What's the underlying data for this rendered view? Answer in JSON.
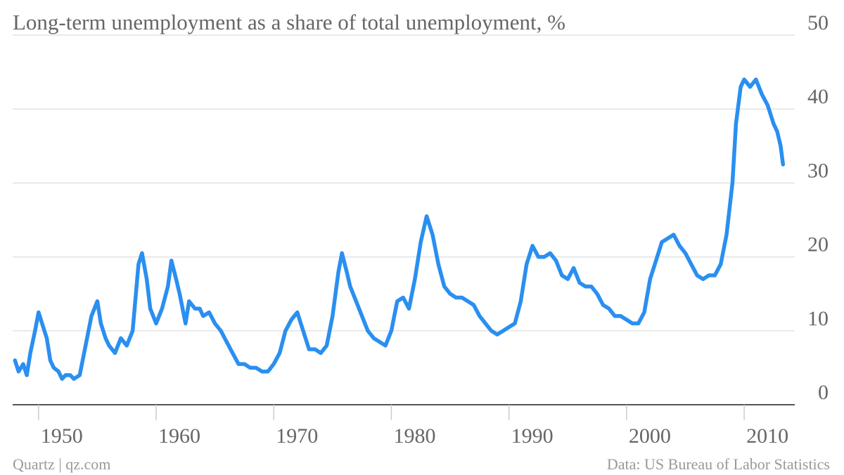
{
  "chart_data": {
    "type": "line",
    "title": "Long-term unemployment as a share of total unemployment, %",
    "source": "Data: US Bureau of Labor Statistics",
    "credit": "Quartz | qz.com",
    "x": [
      1948.0,
      1948.3,
      1948.7,
      1949.0,
      1949.3,
      1949.7,
      1950.0,
      1950.3,
      1950.7,
      1951.0,
      1951.3,
      1951.7,
      1952.0,
      1952.3,
      1952.7,
      1953.0,
      1953.5,
      1954.0,
      1954.5,
      1955.0,
      1955.3,
      1955.7,
      1956.0,
      1956.5,
      1957.0,
      1957.5,
      1958.0,
      1958.5,
      1958.8,
      1959.2,
      1959.5,
      1960.0,
      1960.5,
      1961.0,
      1961.3,
      1961.7,
      1962.0,
      1962.5,
      1962.8,
      1963.3,
      1963.7,
      1964.0,
      1964.5,
      1965.0,
      1965.5,
      1966.0,
      1966.5,
      1967.0,
      1967.5,
      1968.0,
      1968.5,
      1969.0,
      1969.5,
      1970.0,
      1970.5,
      1971.0,
      1971.5,
      1972.0,
      1972.3,
      1972.7,
      1973.0,
      1973.5,
      1974.0,
      1974.5,
      1975.0,
      1975.5,
      1975.8,
      1976.2,
      1976.5,
      1977.0,
      1977.5,
      1978.0,
      1978.5,
      1979.0,
      1979.5,
      1980.0,
      1980.5,
      1981.0,
      1981.5,
      1982.0,
      1982.5,
      1983.0,
      1983.5,
      1984.0,
      1984.5,
      1985.0,
      1985.5,
      1986.0,
      1986.5,
      1987.0,
      1987.5,
      1988.0,
      1988.5,
      1989.0,
      1989.5,
      1990.0,
      1990.5,
      1991.0,
      1991.5,
      1992.0,
      1992.5,
      1993.0,
      1993.5,
      1994.0,
      1994.5,
      1995.0,
      1995.5,
      1996.0,
      1996.5,
      1997.0,
      1997.5,
      1998.0,
      1998.5,
      1999.0,
      1999.5,
      2000.0,
      2000.5,
      2001.0,
      2001.5,
      2002.0,
      2002.5,
      2003.0,
      2003.5,
      2004.0,
      2004.5,
      2005.0,
      2005.5,
      2006.0,
      2006.5,
      2007.0,
      2007.5,
      2008.0,
      2008.5,
      2009.0,
      2009.3,
      2009.7,
      2010.0,
      2010.5,
      2011.0,
      2011.5,
      2012.0,
      2012.5,
      2012.8,
      2013.1,
      2013.3
    ],
    "series": [
      {
        "name": "Long-term unemployment share",
        "color": "#2a8ff0",
        "values": [
          6,
          4.5,
          5.5,
          4,
          7,
          10,
          12.5,
          11,
          9,
          6,
          5,
          4.5,
          3.5,
          4,
          4,
          3.5,
          4,
          8,
          12,
          14,
          11,
          9,
          8,
          7,
          9,
          8,
          10,
          19,
          20.5,
          17,
          13,
          11,
          13,
          16,
          19.5,
          17,
          15,
          11,
          14,
          13,
          13,
          12,
          12.5,
          11,
          10,
          8.5,
          7,
          5.5,
          5.5,
          5,
          5,
          4.5,
          4.5,
          5.5,
          7,
          10,
          11.5,
          12.5,
          11,
          9,
          7.5,
          7.5,
          7,
          8,
          12,
          18,
          20.5,
          18,
          16,
          14,
          12,
          10,
          9,
          8.5,
          8,
          10,
          14,
          14.5,
          13,
          17,
          22,
          25.5,
          23,
          19,
          16,
          15,
          14.5,
          14.5,
          14,
          13.5,
          12,
          11,
          10,
          9.5,
          10,
          10.5,
          11,
          14,
          19,
          21.5,
          20,
          20,
          20.5,
          19.5,
          17.5,
          17,
          18.5,
          16.5,
          16,
          16,
          15,
          13.5,
          13,
          12,
          12,
          11.5,
          11,
          11,
          12.5,
          17,
          19.5,
          22,
          22.5,
          23,
          21.5,
          20.5,
          19,
          17.5,
          17,
          17.5,
          17.5,
          19,
          23,
          30,
          38,
          43,
          44,
          43,
          44,
          42,
          40.5,
          38,
          37,
          35,
          32.5
        ]
      }
    ],
    "xlim": [
      1947.8,
      2014.3
    ],
    "xticks": [
      1950,
      1960,
      1970,
      1980,
      1990,
      2000,
      2010
    ],
    "ylim": [
      0,
      50
    ],
    "yticks": [
      0,
      10,
      20,
      30,
      40,
      50
    ],
    "grid": true
  }
}
